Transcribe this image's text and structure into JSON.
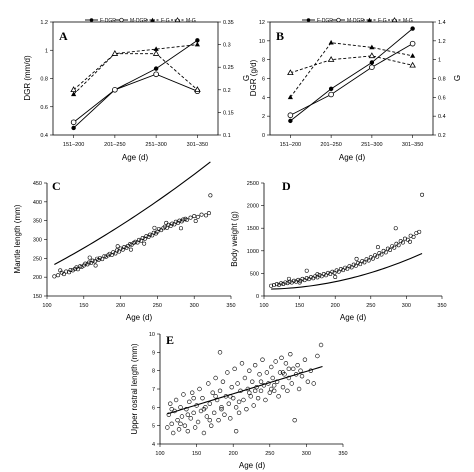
{
  "chart_data": [
    {
      "panel": "A",
      "type": "line",
      "categories": [
        "151–200",
        "201–250",
        "251–300",
        "301–350"
      ],
      "xlabel": "Age (d)",
      "ylabel": "DGR (mm/d)",
      "y2label": "G",
      "ylim": [
        0.4,
        1.2
      ],
      "yticks": [
        "0.4",
        "0.6",
        "0.8",
        "1",
        "1.2"
      ],
      "y2lim": [
        0.1,
        0.35
      ],
      "y2ticks": [
        "0.1",
        "0.15",
        "0.2",
        "0.25",
        "0.3",
        "0.35"
      ],
      "legend": [
        "F-DGR",
        "M-DGR",
        "F-G",
        "M-G"
      ],
      "series": [
        {
          "name": "F-DGR",
          "axis": "left",
          "marker": "filled-circle",
          "dash": false,
          "values": [
            0.45,
            0.72,
            0.87,
            1.07
          ]
        },
        {
          "name": "M-DGR",
          "axis": "left",
          "marker": "open-circle",
          "dash": false,
          "values": [
            0.49,
            0.72,
            0.83,
            0.71
          ]
        },
        {
          "name": "F-G",
          "axis": "right",
          "marker": "filled-triangle",
          "dash": true,
          "values": [
            0.19,
            0.28,
            0.29,
            0.3
          ]
        },
        {
          "name": "M-G",
          "axis": "right",
          "marker": "open-triangle",
          "dash": true,
          "values": [
            0.2,
            0.28,
            0.28,
            0.2
          ]
        }
      ]
    },
    {
      "panel": "B",
      "type": "line",
      "categories": [
        "151–200",
        "201–250",
        "251–300",
        "301–350"
      ],
      "xlabel": "Age (d)",
      "ylabel": "DGR (g/d)",
      "y2label": "G",
      "ylim": [
        0,
        12
      ],
      "yticks": [
        "0",
        "2",
        "4",
        "6",
        "8",
        "10",
        "12"
      ],
      "y2lim": [
        0.2,
        1.4
      ],
      "y2ticks": [
        "0.2",
        "0.4",
        "0.6",
        "0.8",
        "1",
        "1.2",
        "1.4"
      ],
      "legend": [
        "F-DGR",
        "M-DGR",
        "F-G",
        "M-G"
      ],
      "series": [
        {
          "name": "F-DGR",
          "axis": "left",
          "marker": "filled-circle",
          "dash": false,
          "values": [
            1.5,
            4.9,
            7.7,
            11.3
          ]
        },
        {
          "name": "M-DGR",
          "axis": "left",
          "marker": "open-circle",
          "dash": false,
          "values": [
            2.1,
            4.3,
            7.2,
            9.7
          ]
        },
        {
          "name": "F-G",
          "axis": "right",
          "marker": "filled-triangle",
          "dash": true,
          "values": [
            0.6,
            1.18,
            1.13,
            1.04
          ]
        },
        {
          "name": "M-G",
          "axis": "right",
          "marker": "open-triangle",
          "dash": true,
          "values": [
            0.86,
            1.0,
            1.04,
            0.94
          ]
        }
      ]
    },
    {
      "panel": "C",
      "type": "scatter",
      "xlabel": "Age (d)",
      "ylabel": "Mantle length (mm)",
      "xlim": [
        100,
        350
      ],
      "xticks": [
        "100",
        "150",
        "200",
        "250",
        "300",
        "350"
      ],
      "ylim": [
        150,
        450
      ],
      "yticks": [
        "150",
        "200",
        "250",
        "300",
        "350",
        "400",
        "450"
      ],
      "points": [
        [
          110,
          202
        ],
        [
          115,
          205
        ],
        [
          120,
          212
        ],
        [
          123,
          208
        ],
        [
          126,
          215
        ],
        [
          130,
          213
        ],
        [
          132,
          219
        ],
        [
          135,
          218
        ],
        [
          138,
          222
        ],
        [
          140,
          226
        ],
        [
          142,
          221
        ],
        [
          145,
          229
        ],
        [
          147,
          227
        ],
        [
          150,
          231
        ],
        [
          152,
          236
        ],
        [
          155,
          234
        ],
        [
          157,
          239
        ],
        [
          160,
          238
        ],
        [
          162,
          244
        ],
        [
          165,
          242
        ],
        [
          168,
          249
        ],
        [
          170,
          246
        ],
        [
          172,
          251
        ],
        [
          175,
          248
        ],
        [
          178,
          256
        ],
        [
          180,
          254
        ],
        [
          183,
          258
        ],
        [
          185,
          262
        ],
        [
          188,
          259
        ],
        [
          190,
          266
        ],
        [
          193,
          263
        ],
        [
          195,
          271
        ],
        [
          198,
          268
        ],
        [
          200,
          276
        ],
        [
          203,
          273
        ],
        [
          205,
          280
        ],
        [
          208,
          278
        ],
        [
          210,
          283
        ],
        [
          213,
          288
        ],
        [
          215,
          286
        ],
        [
          218,
          291
        ],
        [
          220,
          294
        ],
        [
          223,
          292
        ],
        [
          225,
          299
        ],
        [
          228,
          297
        ],
        [
          230,
          304
        ],
        [
          233,
          302
        ],
        [
          235,
          309
        ],
        [
          238,
          307
        ],
        [
          240,
          313
        ],
        [
          243,
          311
        ],
        [
          245,
          318
        ],
        [
          248,
          316
        ],
        [
          250,
          321
        ],
        [
          252,
          328
        ],
        [
          255,
          325
        ],
        [
          258,
          330
        ],
        [
          260,
          334
        ],
        [
          263,
          331
        ],
        [
          265,
          339
        ],
        [
          268,
          336
        ],
        [
          270,
          342
        ],
        [
          273,
          340
        ],
        [
          275,
          347
        ],
        [
          278,
          344
        ],
        [
          280,
          350
        ],
        [
          283,
          348
        ],
        [
          285,
          353
        ],
        [
          288,
          355
        ],
        [
          290,
          352
        ],
        [
          295,
          358
        ],
        [
          300,
          362
        ],
        [
          305,
          360
        ],
        [
          310,
          366
        ],
        [
          316,
          364
        ],
        [
          320,
          370
        ],
        [
          322,
          417
        ],
        [
          118,
          218
        ],
        [
          158,
          252
        ],
        [
          196,
          282
        ],
        [
          232,
          289
        ],
        [
          262,
          344
        ],
        [
          282,
          330
        ],
        [
          302,
          349
        ],
        [
          166,
          231
        ],
        [
          214,
          273
        ],
        [
          246,
          331
        ]
      ],
      "fit": {
        "from": 110,
        "to": 322,
        "coef": [
          131.3,
          0.8096,
          0.001098
        ]
      }
    },
    {
      "panel": "D",
      "type": "scatter",
      "xlabel": "Age (d)",
      "ylabel": "Body weight (g)",
      "xlim": [
        100,
        350
      ],
      "xticks": [
        "100",
        "150",
        "200",
        "250",
        "300",
        "350"
      ],
      "ylim": [
        0,
        2500
      ],
      "yticks": [
        "0",
        "500",
        "1000",
        "1500",
        "2000",
        "2500"
      ],
      "points": [
        [
          110,
          228
        ],
        [
          114,
          242
        ],
        [
          118,
          262
        ],
        [
          121,
          246
        ],
        [
          124,
          282
        ],
        [
          127,
          266
        ],
        [
          130,
          300
        ],
        [
          133,
          286
        ],
        [
          136,
          318
        ],
        [
          139,
          298
        ],
        [
          142,
          338
        ],
        [
          145,
          318
        ],
        [
          148,
          356
        ],
        [
          151,
          334
        ],
        [
          154,
          378
        ],
        [
          157,
          352
        ],
        [
          160,
          396
        ],
        [
          163,
          372
        ],
        [
          166,
          418
        ],
        [
          169,
          394
        ],
        [
          172,
          438
        ],
        [
          175,
          412
        ],
        [
          178,
          462
        ],
        [
          181,
          436
        ],
        [
          184,
          486
        ],
        [
          187,
          460
        ],
        [
          190,
          512
        ],
        [
          193,
          486
        ],
        [
          196,
          536
        ],
        [
          199,
          512
        ],
        [
          202,
          566
        ],
        [
          205,
          540
        ],
        [
          208,
          598
        ],
        [
          211,
          572
        ],
        [
          214,
          626
        ],
        [
          217,
          602
        ],
        [
          220,
          658
        ],
        [
          223,
          634
        ],
        [
          226,
          694
        ],
        [
          229,
          668
        ],
        [
          232,
          732
        ],
        [
          235,
          704
        ],
        [
          238,
          772
        ],
        [
          241,
          744
        ],
        [
          244,
          812
        ],
        [
          247,
          786
        ],
        [
          250,
          856
        ],
        [
          253,
          828
        ],
        [
          256,
          902
        ],
        [
          259,
          872
        ],
        [
          262,
          948
        ],
        [
          265,
          918
        ],
        [
          268,
          998
        ],
        [
          271,
          966
        ],
        [
          274,
          1048
        ],
        [
          277,
          1018
        ],
        [
          280,
          1102
        ],
        [
          283,
          1070
        ],
        [
          286,
          1156
        ],
        [
          289,
          1124
        ],
        [
          292,
          1214
        ],
        [
          295,
          1184
        ],
        [
          298,
          1270
        ],
        [
          302,
          1244
        ],
        [
          306,
          1334
        ],
        [
          310,
          1308
        ],
        [
          314,
          1392
        ],
        [
          318,
          1420
        ],
        [
          322,
          2240
        ],
        [
          150,
          300
        ],
        [
          175,
          480
        ],
        [
          200,
          420
        ],
        [
          230,
          820
        ],
        [
          260,
          1080
        ],
        [
          285,
          1500
        ],
        [
          305,
          1200
        ],
        [
          160,
          560
        ],
        [
          135,
          380
        ]
      ],
      "fit": {
        "from": 110,
        "to": 322,
        "coef": [
          296.16,
          -3.02,
          0.0156
        ]
      }
    },
    {
      "panel": "E",
      "type": "scatter",
      "xlabel": "Age (d)",
      "ylabel": "Upper rostral length (mm)",
      "xlim": [
        100,
        350
      ],
      "xticks": [
        "100",
        "150",
        "200",
        "250",
        "300",
        "350"
      ],
      "ylim": [
        4,
        10
      ],
      "yticks": [
        "4",
        "5",
        "6",
        "7",
        "8",
        "9",
        "10"
      ],
      "points": [
        [
          110,
          4.9
        ],
        [
          112,
          5.6
        ],
        [
          114,
          6.2
        ],
        [
          116,
          5.1
        ],
        [
          118,
          4.6
        ],
        [
          120,
          5.8
        ],
        [
          122,
          6.4
        ],
        [
          124,
          5.3
        ],
        [
          126,
          4.8
        ],
        [
          128,
          6.0
        ],
        [
          130,
          5.5
        ],
        [
          132,
          6.7
        ],
        [
          134,
          5.0
        ],
        [
          136,
          5.9
        ],
        [
          138,
          4.7
        ],
        [
          140,
          6.3
        ],
        [
          142,
          5.4
        ],
        [
          144,
          6.8
        ],
        [
          146,
          5.7
        ],
        [
          148,
          4.9
        ],
        [
          150,
          6.1
        ],
        [
          152,
          5.2
        ],
        [
          154,
          7.0
        ],
        [
          156,
          5.8
        ],
        [
          158,
          6.5
        ],
        [
          160,
          4.6
        ],
        [
          162,
          6.0
        ],
        [
          164,
          5.5
        ],
        [
          166,
          7.3
        ],
        [
          168,
          6.2
        ],
        [
          170,
          5.0
        ],
        [
          172,
          6.8
        ],
        [
          174,
          5.7
        ],
        [
          176,
          7.6
        ],
        [
          178,
          6.4
        ],
        [
          180,
          5.3
        ],
        [
          182,
          6.9
        ],
        [
          184,
          6.0
        ],
        [
          186,
          7.4
        ],
        [
          188,
          5.6
        ],
        [
          190,
          6.6
        ],
        [
          192,
          7.9
        ],
        [
          194,
          6.2
        ],
        [
          196,
          5.4
        ],
        [
          198,
          7.1
        ],
        [
          200,
          6.5
        ],
        [
          202,
          8.1
        ],
        [
          204,
          6.0
        ],
        [
          206,
          7.3
        ],
        [
          208,
          5.7
        ],
        [
          210,
          6.9
        ],
        [
          212,
          8.4
        ],
        [
          214,
          6.4
        ],
        [
          216,
          7.6
        ],
        [
          218,
          5.9
        ],
        [
          220,
          7.0
        ],
        [
          222,
          8.0
        ],
        [
          224,
          6.6
        ],
        [
          226,
          7.4
        ],
        [
          228,
          6.1
        ],
        [
          230,
          8.3
        ],
        [
          232,
          7.1
        ],
        [
          234,
          6.5
        ],
        [
          236,
          7.8
        ],
        [
          238,
          6.9
        ],
        [
          240,
          8.6
        ],
        [
          242,
          7.2
        ],
        [
          244,
          6.4
        ],
        [
          246,
          7.9
        ],
        [
          248,
          7.3
        ],
        [
          250,
          6.8
        ],
        [
          252,
          8.2
        ],
        [
          254,
          7.6
        ],
        [
          256,
          6.9
        ],
        [
          258,
          8.5
        ],
        [
          260,
          7.4
        ],
        [
          262,
          6.6
        ],
        [
          264,
          7.9
        ],
        [
          266,
          8.7
        ],
        [
          268,
          7.1
        ],
        [
          270,
          7.8
        ],
        [
          272,
          8.4
        ],
        [
          274,
          6.9
        ],
        [
          276,
          7.6
        ],
        [
          278,
          8.9
        ],
        [
          280,
          7.3
        ],
        [
          282,
          8.1
        ],
        [
          284,
          5.3
        ],
        [
          286,
          7.8
        ],
        [
          288,
          8.3
        ],
        [
          290,
          7.0
        ],
        [
          294,
          7.7
        ],
        [
          298,
          8.6
        ],
        [
          302,
          7.4
        ],
        [
          306,
          8.0
        ],
        [
          310,
          7.3
        ],
        [
          315,
          8.8
        ],
        [
          320,
          9.4
        ],
        [
          128,
          5.1
        ],
        [
          146,
          6.5
        ],
        [
          168,
          5.3
        ],
        [
          184,
          5.9
        ],
        [
          196,
          6.6
        ],
        [
          208,
          6.3
        ],
        [
          222,
          6.8
        ],
        [
          238,
          7.4
        ],
        [
          252,
          7.0
        ],
        [
          268,
          7.9
        ],
        [
          182,
          9.0
        ],
        [
          204,
          4.7
        ],
        [
          116,
          5.9
        ],
        [
          138,
          5.6
        ],
        [
          160,
          5.9
        ],
        [
          176,
          6.6
        ],
        [
          230,
          6.9
        ],
        [
          256,
          7.2
        ],
        [
          276,
          8.1
        ],
        [
          292,
          8.0
        ]
      ],
      "fit": {
        "from": 110,
        "to": 322,
        "coef": [
          4.3,
          0.0122,
          0
        ]
      }
    }
  ]
}
